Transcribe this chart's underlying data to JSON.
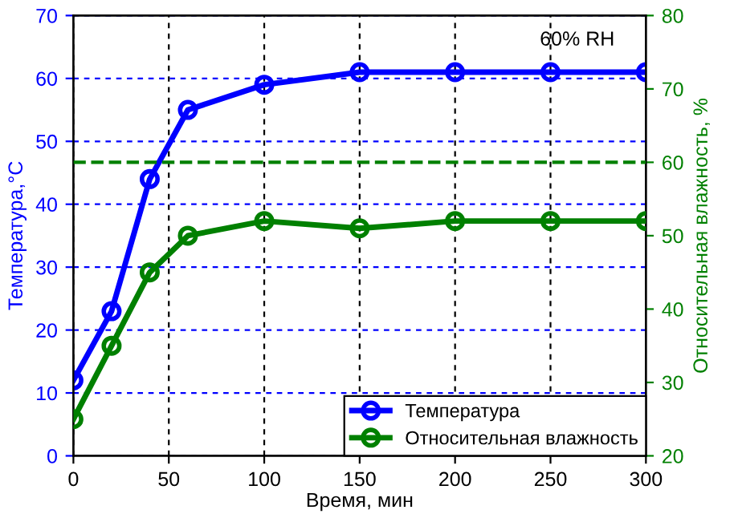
{
  "chart_data": {
    "type": "line",
    "xlabel": "Время, мин",
    "ylabel": "Температура,°C",
    "y2label": "Относительная влажность, %",
    "x": [
      0,
      20,
      40,
      60,
      100,
      150,
      200,
      250,
      300
    ],
    "series": [
      {
        "name": "Температура",
        "color": "#0000ff",
        "values": [
          12,
          23,
          44,
          55,
          59,
          61,
          61,
          61,
          61
        ]
      },
      {
        "name": "Относительная влажность",
        "color": "#008000",
        "axis": "y2",
        "values": [
          25,
          35,
          45,
          50,
          52,
          51,
          52,
          52,
          52
        ]
      }
    ],
    "xlim": [
      0,
      300
    ],
    "xticks": [
      0,
      50,
      100,
      150,
      200,
      250,
      300
    ],
    "ylim": [
      0,
      70
    ],
    "yticks": [
      0,
      10,
      20,
      30,
      40,
      50,
      60,
      70
    ],
    "y2lim": [
      20,
      80
    ],
    "y2ticks": [
      20,
      30,
      40,
      50,
      60,
      70,
      80
    ],
    "ref_lines": [
      {
        "axis": "y2",
        "value": 60,
        "color": "#008000",
        "line_style": "dashed"
      }
    ],
    "annotations": [
      "60% RH"
    ],
    "grid": true,
    "legend": "bottom right",
    "marker": "circle",
    "line_style": "solid"
  }
}
